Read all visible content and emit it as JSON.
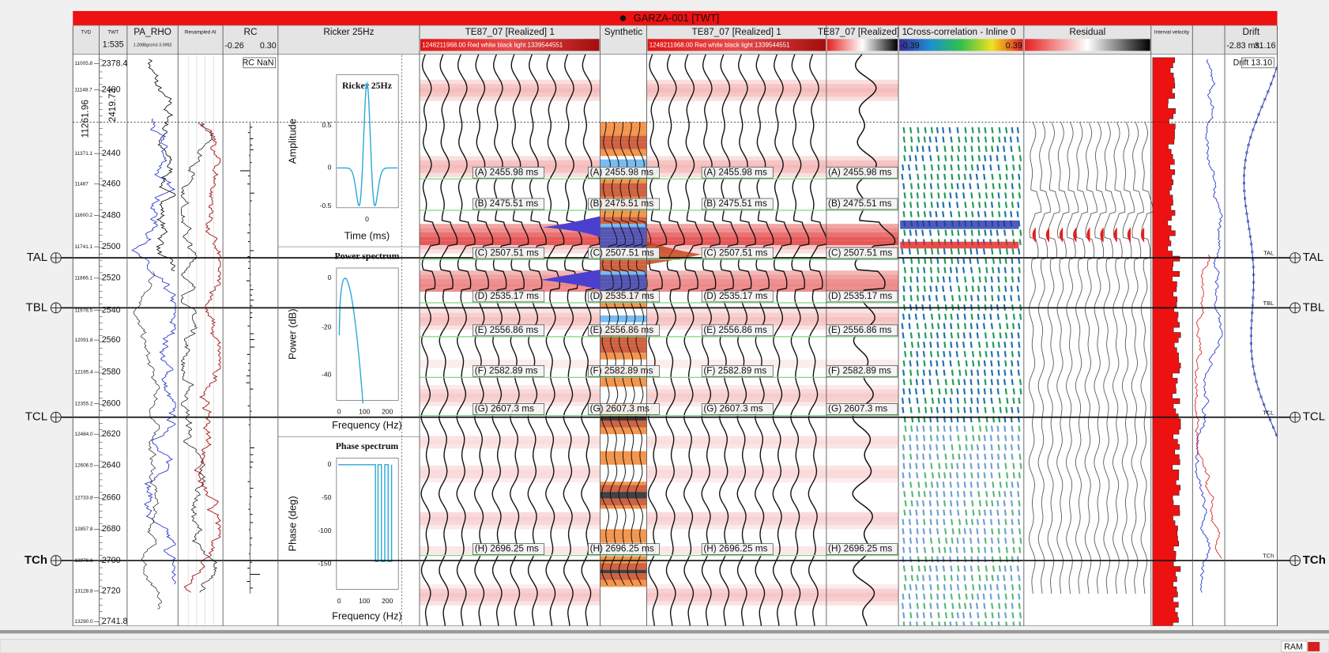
{
  "title": "GARZA-001 [TWT]",
  "tracks": [
    {
      "name": "TVD"
    },
    {
      "name": "TWT",
      "scale": "1:535"
    },
    {
      "name": "PA_RHO",
      "range": "1.2088g/cm3 3.0992"
    },
    {
      "name": "Resampled AI"
    },
    {
      "name": "RC",
      "min": "-0.26",
      "max": "0.30",
      "note": "RC NaN"
    },
    {
      "name": "Ricker 25Hz"
    },
    {
      "name": "TE87_07 [Realized] 1",
      "colorbar": "1248211968.00 Red white black light 1339544551"
    },
    {
      "name": "Synthetic"
    },
    {
      "name": "TE87_07 [Realized] 1",
      "colorbar": "1248211968.00 Red white black light 1339544551"
    },
    {
      "name": "TE87_07 [Realized] 1"
    },
    {
      "name": "Cross-correlation - Inline 0",
      "min": "-0.39",
      "max": "0.39"
    },
    {
      "name": "Residual"
    },
    {
      "name": "Interval velocity"
    },
    {
      "name": "Drift",
      "min": "-2.83 ms",
      "max": "31.16",
      "note": "Drift 13.10"
    }
  ],
  "depth_rows": [
    {
      "tvd": "11005.8",
      "twt": "2378.4"
    },
    {
      "tvd": "11148.7",
      "twt": "2400"
    },
    {
      "tvd": "11371.1",
      "twt": "2440"
    },
    {
      "tvd": "11487",
      "twt": "2460"
    },
    {
      "tvd": "11600.2",
      "twt": "2480"
    },
    {
      "tvd": "11741.1",
      "twt": "2500"
    },
    {
      "tvd": "11866.1",
      "twt": "2520"
    },
    {
      "tvd": "11978.5",
      "twt": "2540"
    },
    {
      "tvd": "12091.8",
      "twt": "2560"
    },
    {
      "tvd": "12195.4",
      "twt": "2580"
    },
    {
      "tvd": "12355.2",
      "twt": "2600"
    },
    {
      "tvd": "12484.0",
      "twt": "2620"
    },
    {
      "tvd": "12606.5",
      "twt": "2640"
    },
    {
      "tvd": "12733.8",
      "twt": "2660"
    },
    {
      "tvd": "12857.8",
      "twt": "2680"
    },
    {
      "tvd": "12976.6",
      "twt": "2700"
    },
    {
      "tvd": "13128.8",
      "twt": "2720"
    },
    {
      "tvd": "13290.0",
      "twt": "2741.8"
    }
  ],
  "top_pick": {
    "tvd": "11261.96",
    "twt": "2419.73"
  },
  "markers": [
    "TAL",
    "TBL",
    "TCL",
    "TCh"
  ],
  "picks": [
    "(A) 2455.98 ms",
    "(B) 2475.51 ms",
    "(C) 2507.51 ms",
    "(D) 2535.17 ms",
    "(E) 2556.86 ms",
    "(F) 2582.89 ms",
    "(G) 2607.3 ms",
    "(H) 2696.25 ms"
  ],
  "wavelet": {
    "title": "Ricker 25Hz",
    "amplitude": {
      "ylabel": "Amplitude",
      "xlabel": "Time (ms)",
      "yticks": [
        "0.5",
        "0",
        "-0.5"
      ],
      "xticks": [
        "0"
      ]
    },
    "power": {
      "title": "Power spectrum",
      "ylabel": "Power (dB)",
      "xlabel": "Frequency (Hz)",
      "yticks": [
        "0",
        "-20",
        "-40"
      ],
      "xticks": [
        "0",
        "100",
        "200"
      ]
    },
    "phase": {
      "title": "Phase spectrum",
      "ylabel": "Phase (deg)",
      "xlabel": "Frequency (Hz)",
      "yticks": [
        "0",
        "-50",
        "-100",
        "-150"
      ],
      "xticks": [
        "0",
        "100",
        "200"
      ]
    }
  },
  "status": "RAM"
}
